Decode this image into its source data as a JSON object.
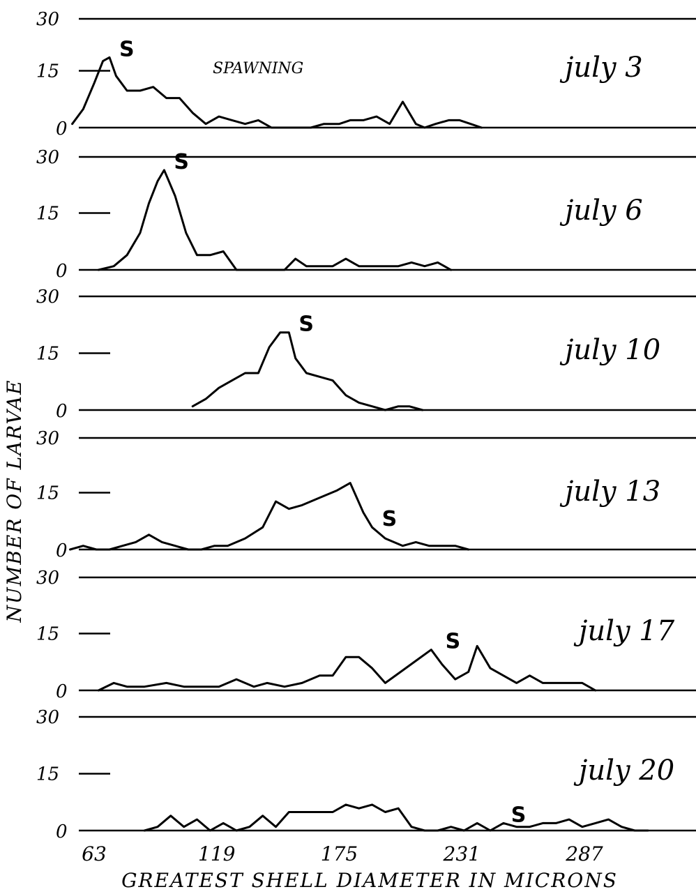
{
  "chart_data": {
    "type": "line",
    "ylabel": "NUMBER OF LARVAE",
    "xlabel": "GREATEST SHELL DIAMETER IN MICRONS",
    "x_ticks": [
      "63",
      "119",
      "175",
      "231",
      "287"
    ],
    "x_tick_values": [
      63,
      119,
      175,
      231,
      287
    ],
    "xlim": [
      40,
      345
    ],
    "y_ticks": [
      "0",
      "15",
      "30"
    ],
    "ylim": [
      0,
      30
    ],
    "spawn_marker": "S",
    "annotation": "SPAWNING",
    "panels": [
      {
        "name": "july 3",
        "spawn_x": 70,
        "x": [
          53,
          58,
          63,
          67,
          70,
          73,
          78,
          84,
          90,
          96,
          102,
          108,
          114,
          120,
          126,
          132,
          138,
          144,
          150,
          156,
          162,
          168,
          175,
          180,
          186,
          192,
          198,
          204,
          210,
          214,
          219,
          225,
          230,
          235,
          240
        ],
        "y": [
          1,
          5,
          12,
          18,
          19,
          14,
          10,
          10,
          11,
          8,
          8,
          4,
          1,
          3,
          2,
          1,
          2,
          0,
          0,
          0,
          0,
          1,
          1,
          2,
          2,
          3,
          1,
          7,
          1,
          0,
          1,
          2,
          2,
          1,
          0
        ]
      },
      {
        "name": "july 6",
        "spawn_x": 95,
        "x": [
          65,
          72,
          78,
          84,
          88,
          92,
          95,
          100,
          105,
          110,
          116,
          122,
          128,
          134,
          140,
          146,
          150,
          155,
          160,
          166,
          172,
          178,
          184,
          190,
          196,
          202,
          208,
          214,
          220,
          226
        ],
        "y": [
          0,
          1,
          4,
          10,
          18,
          24,
          27,
          20,
          10,
          4,
          4,
          5,
          0,
          0,
          0,
          0,
          0,
          3,
          1,
          1,
          1,
          3,
          1,
          1,
          1,
          1,
          2,
          1,
          2,
          0
        ]
      },
      {
        "name": "july 10",
        "spawn_x": 152,
        "x": [
          108,
          114,
          120,
          126,
          132,
          138,
          143,
          148,
          152,
          155,
          160,
          166,
          172,
          178,
          184,
          190,
          196,
          202,
          207,
          213
        ],
        "y": [
          1,
          3,
          6,
          8,
          10,
          10,
          17,
          21,
          21,
          14,
          10,
          9,
          8,
          4,
          2,
          1,
          0,
          1,
          1,
          0
        ]
      },
      {
        "name": "july 13",
        "spawn_x": 190,
        "x": [
          52,
          58,
          64,
          70,
          76,
          82,
          88,
          94,
          100,
          106,
          112,
          118,
          124,
          132,
          140,
          146,
          152,
          158,
          166,
          174,
          180,
          186,
          190,
          196,
          204,
          210,
          216,
          222,
          228,
          234
        ],
        "y": [
          0,
          1,
          0,
          0,
          1,
          2,
          4,
          2,
          1,
          0,
          0,
          1,
          1,
          3,
          6,
          13,
          11,
          12,
          14,
          16,
          18,
          10,
          6,
          3,
          1,
          2,
          1,
          1,
          1,
          0
        ]
      },
      {
        "name": "july 17",
        "spawn_x": 219,
        "x": [
          65,
          72,
          78,
          86,
          96,
          104,
          112,
          120,
          128,
          136,
          142,
          150,
          158,
          166,
          172,
          178,
          184,
          190,
          196,
          203,
          210,
          217,
          222,
          228,
          234,
          238,
          244,
          250,
          256,
          262,
          268,
          274,
          280,
          286,
          292
        ],
        "y": [
          0,
          2,
          1,
          1,
          2,
          1,
          1,
          1,
          3,
          1,
          2,
          1,
          2,
          4,
          4,
          9,
          9,
          6,
          2,
          5,
          8,
          11,
          7,
          3,
          5,
          12,
          6,
          4,
          2,
          4,
          2,
          2,
          2,
          2,
          0
        ]
      },
      {
        "name": "july 20",
        "spawn_x": 249,
        "x": [
          86,
          92,
          98,
          104,
          110,
          116,
          122,
          128,
          134,
          140,
          146,
          152,
          158,
          165,
          172,
          178,
          184,
          190,
          196,
          202,
          208,
          214,
          220,
          226,
          232,
          238,
          244,
          250,
          256,
          262,
          268,
          274,
          280,
          286,
          292,
          298,
          304,
          310,
          316
        ],
        "y": [
          0,
          1,
          4,
          1,
          3,
          0,
          2,
          0,
          1,
          4,
          1,
          5,
          5,
          5,
          5,
          7,
          6,
          7,
          5,
          6,
          1,
          0,
          0,
          1,
          0,
          2,
          0,
          2,
          1,
          1,
          2,
          2,
          3,
          1,
          2,
          3,
          1,
          0,
          0
        ]
      }
    ]
  }
}
